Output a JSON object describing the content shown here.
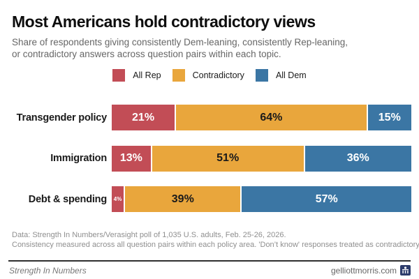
{
  "header": {
    "title": "Most Americans hold contradictory views",
    "subtitle_line1": "Share of respondents giving consistently Dem-leaning, consistently Rep-leaning,",
    "subtitle_line2": "or contradictory answers across question pairs within each topic."
  },
  "legend": {
    "items": [
      {
        "label": "All Rep",
        "color": "#C24D56"
      },
      {
        "label": "Contradictory",
        "color": "#E9A63C"
      },
      {
        "label": "All Dem",
        "color": "#3B76A4"
      }
    ]
  },
  "chart_data": {
    "type": "bar",
    "stacked": true,
    "orientation": "horizontal",
    "title": "Most Americans hold contradictory views",
    "categories": [
      "Transgender policy",
      "Immigration",
      "Debt & spending"
    ],
    "series": [
      {
        "name": "All Rep",
        "color": "#C24D56",
        "label_color": "#ffffff",
        "values": [
          21,
          13,
          4
        ]
      },
      {
        "name": "Contradictory",
        "color": "#E9A63C",
        "label_color": "#1a1a1a",
        "values": [
          64,
          51,
          39
        ]
      },
      {
        "name": "All Dem",
        "color": "#3B76A4",
        "label_color": "#ffffff",
        "values": [
          15,
          36,
          57
        ]
      }
    ],
    "value_format": "percent",
    "xlim": [
      0,
      100
    ],
    "grid": false,
    "legend_position": "top-center"
  },
  "notes": {
    "line1": "Data: Strength In Numbers/Verasight poll of 1,035 U.S. adults, Feb. 25-26, 2026.",
    "line2": "Consistency measured across all question pairs within each policy area. 'Don’t know' responses treated as contradictory"
  },
  "footer": {
    "brand": "Strength In Numbers",
    "site": "gelliottmorris.com",
    "logo": "capitol-logo-icon"
  }
}
